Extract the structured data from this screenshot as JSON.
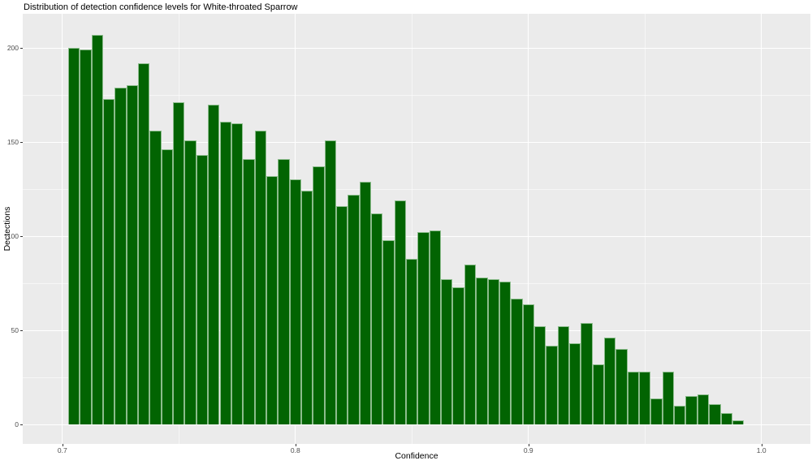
{
  "chart_data": {
    "type": "bar",
    "subtype": "histogram",
    "title": "Distribution of detection confidence levels for White-throated Sparrow",
    "xlabel": "Confidence",
    "ylabel": "Dectections",
    "bin_start": 0.7025,
    "bin_width": 0.005,
    "values": [
      200,
      199,
      207,
      173,
      179,
      180,
      192,
      156,
      146,
      171,
      151,
      143,
      170,
      161,
      160,
      141,
      156,
      132,
      141,
      130,
      124,
      137,
      151,
      116,
      122,
      129,
      112,
      98,
      119,
      88,
      102,
      103,
      77,
      73,
      85,
      78,
      77,
      76,
      67,
      64,
      52,
      42,
      52,
      43,
      54,
      32,
      46,
      40,
      28,
      28,
      14,
      28,
      10,
      15,
      16,
      11,
      6,
      2
    ],
    "x_tick_values": [
      0.7,
      0.8,
      0.9,
      1.0
    ],
    "x_tick_labels": [
      "0.7",
      "0.8",
      "0.9",
      "1.0"
    ],
    "y_tick_values": [
      0,
      50,
      100,
      150,
      200
    ],
    "y_tick_labels": [
      "0",
      "50",
      "100",
      "150",
      "200"
    ],
    "x_minor_gridlines": [
      0.75,
      0.85,
      0.95
    ],
    "y_minor_gridlines": [
      25,
      75,
      125,
      175
    ],
    "xlim": [
      0.683,
      1.021
    ],
    "ylim": [
      -10.3,
      218.1
    ],
    "grid": "on",
    "legend": "none",
    "colors": {
      "bar_fill": "#026402",
      "bar_border": "#8CBC8C",
      "panel_bg": "#EBEBEB",
      "grid_major": "#FFFFFF",
      "grid_minor": "rgba(255,255,255,0.55)",
      "tick_label": "#4D4D4D",
      "tick_mark": "#333333",
      "text": "#000000"
    }
  }
}
